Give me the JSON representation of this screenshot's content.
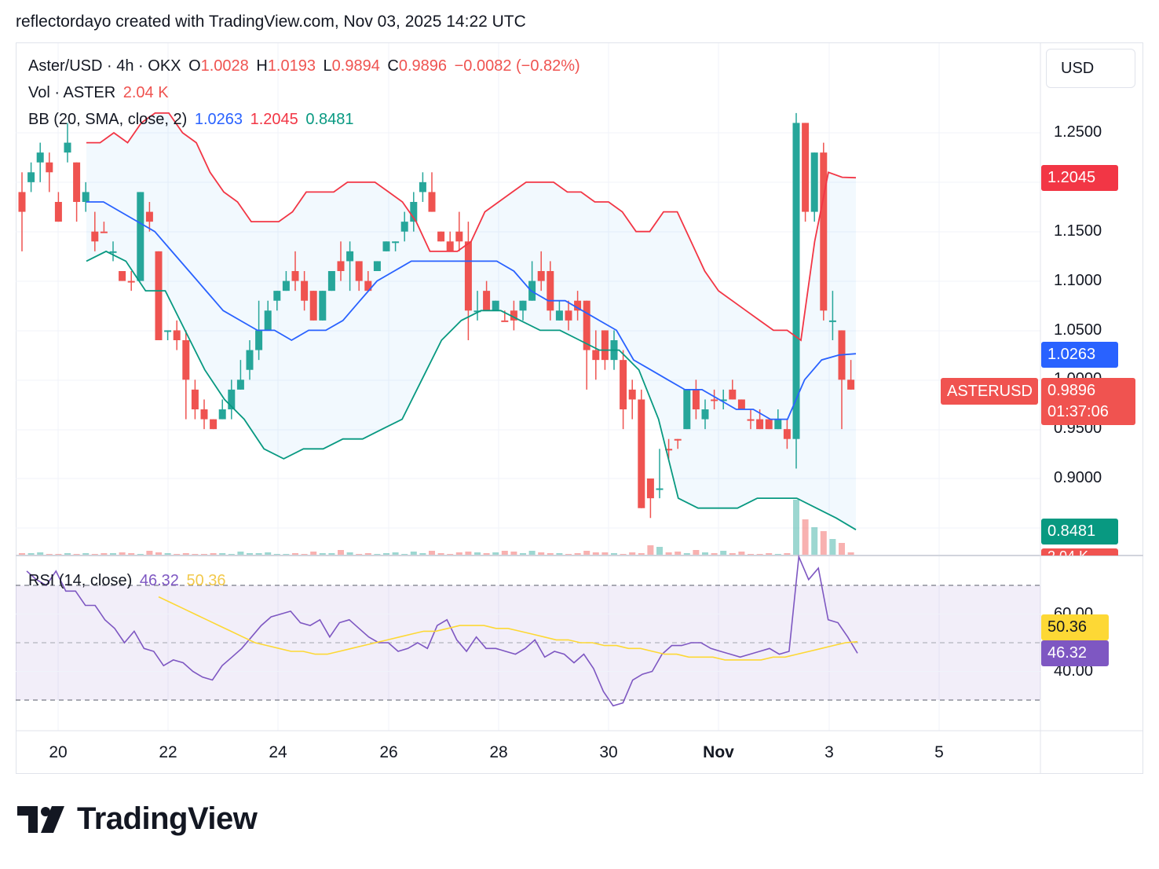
{
  "header": {
    "text": "reflectordayo created with TradingView.com, Nov 03, 2025 14:22 UTC"
  },
  "legend": {
    "symbol": "Aster/USD · 4h · OKX",
    "o_label": "O",
    "o": "1.0028",
    "h_label": "H",
    "h": "1.0193",
    "l_label": "L",
    "l": "0.9894",
    "c_label": "C",
    "c": "0.9896",
    "change": "−0.0082 (−0.82%)",
    "vol_title": "Vol · ASTER",
    "vol_value": "2.04 K",
    "bb_title": "BB (20, SMA, close, 2)",
    "bb_basis": "1.0263",
    "bb_upper": "1.2045",
    "bb_lower": "0.8481",
    "rsi_title": "RSI (14, close)",
    "rsi_value": "46.32",
    "rsi_ma": "50.36"
  },
  "currency_button": "USD",
  "price_axis": [
    "1.2500",
    "1.1500",
    "1.1000",
    "1.0500",
    "1.0000",
    "0.9500",
    "0.9000"
  ],
  "price_tags": {
    "upper": "1.2045",
    "basis": "1.0263",
    "lower": "0.8481",
    "last_symbol": "ASTERUSD",
    "last": "0.9896",
    "countdown": "01:37:06",
    "vol": "2.04 K"
  },
  "rsi_axis": [
    "60.00",
    "40.00"
  ],
  "rsi_tags": {
    "ma": "50.36",
    "rsi": "46.32"
  },
  "x_axis": [
    "20",
    "22",
    "24",
    "26",
    "28",
    "30",
    "Nov",
    "3",
    "5"
  ],
  "brand": "TradingView",
  "colors": {
    "up": "#26a69a",
    "down": "#ef5350",
    "basis": "#2962ff",
    "upper": "#f23645",
    "lower": "#089981",
    "band_fill": "#2196f3",
    "rsi": "#7e57c2",
    "rsi_ma": "#fdd835",
    "last_tag": "#f05350"
  },
  "chart_data": {
    "type": "candlestick",
    "interval": "4h",
    "x_range_days": [
      19.55,
      6.85
    ],
    "y_range": [
      0.865,
      1.285
    ],
    "rsi_range": [
      20,
      85
    ],
    "rsi_levels": [
      70,
      50,
      30
    ],
    "candles": [
      [
        1.17,
        1.21,
        1.19,
        1.13,
        0
      ],
      [
        1.2,
        1.22,
        1.21,
        1.19,
        1
      ],
      [
        1.23,
        1.24,
        1.22,
        1.2,
        1
      ],
      [
        1.22,
        1.23,
        1.21,
        1.19,
        0
      ],
      [
        1.18,
        1.19,
        1.16,
        1.16,
        0
      ],
      [
        1.23,
        1.26,
        1.24,
        1.22,
        1
      ],
      [
        1.22,
        1.21,
        1.18,
        1.16,
        0
      ],
      [
        1.19,
        1.2,
        1.18,
        1.17,
        1
      ],
      [
        1.15,
        1.17,
        1.14,
        1.13,
        0
      ],
      [
        1.15,
        1.16,
        1.15,
        1.15,
        0
      ],
      [
        1.13,
        1.14,
        1.13,
        1.12,
        1
      ],
      [
        1.11,
        1.11,
        1.1,
        1.1,
        0
      ],
      [
        1.1,
        1.11,
        1.1,
        1.09,
        0
      ],
      [
        1.1,
        1.14,
        1.19,
        1.1,
        1
      ],
      [
        1.17,
        1.18,
        1.16,
        1.15,
        0
      ],
      [
        1.13,
        1.13,
        1.04,
        1.04,
        0
      ],
      [
        1.05,
        1.05,
        1.05,
        1.04,
        1
      ],
      [
        1.05,
        1.06,
        1.04,
        1.03,
        0
      ],
      [
        1.04,
        1.05,
        1.0,
        0.96,
        0
      ],
      [
        0.99,
        1.0,
        0.97,
        0.96,
        0
      ],
      [
        0.97,
        0.98,
        0.96,
        0.95,
        0
      ],
      [
        0.95,
        0.96,
        0.96,
        0.95,
        0
      ],
      [
        0.97,
        0.98,
        0.96,
        0.96,
        1
      ],
      [
        0.99,
        1.0,
        0.97,
        0.96,
        1
      ],
      [
        1.0,
        1.02,
        0.99,
        0.99,
        1
      ],
      [
        1.03,
        1.04,
        1.01,
        1.0,
        1
      ],
      [
        1.05,
        1.08,
        1.03,
        1.02,
        1
      ],
      [
        1.07,
        1.08,
        1.05,
        1.05,
        1
      ],
      [
        1.09,
        1.09,
        1.08,
        1.07,
        1
      ],
      [
        1.1,
        1.11,
        1.09,
        1.09,
        1
      ],
      [
        1.11,
        1.13,
        1.1,
        1.09,
        0
      ],
      [
        1.1,
        1.11,
        1.08,
        1.07,
        0
      ],
      [
        1.09,
        1.08,
        1.06,
        1.06,
        0
      ],
      [
        1.09,
        1.09,
        1.06,
        1.06,
        1
      ],
      [
        1.11,
        1.11,
        1.09,
        1.09,
        1
      ],
      [
        1.12,
        1.14,
        1.11,
        1.1,
        0
      ],
      [
        1.13,
        1.14,
        1.12,
        1.09,
        1
      ],
      [
        1.12,
        1.12,
        1.1,
        1.09,
        0
      ],
      [
        1.1,
        1.11,
        1.09,
        1.09,
        0
      ],
      [
        1.12,
        1.12,
        1.11,
        1.11,
        1
      ],
      [
        1.14,
        1.14,
        1.13,
        1.13,
        1
      ],
      [
        1.14,
        1.14,
        1.14,
        1.13,
        1
      ],
      [
        1.16,
        1.17,
        1.15,
        1.14,
        1
      ],
      [
        1.18,
        1.19,
        1.16,
        1.15,
        1
      ],
      [
        1.2,
        1.21,
        1.19,
        1.18,
        1
      ],
      [
        1.19,
        1.21,
        1.17,
        1.17,
        0
      ],
      [
        1.15,
        1.15,
        1.14,
        1.14,
        0
      ],
      [
        1.14,
        1.15,
        1.13,
        1.13,
        0
      ],
      [
        1.15,
        1.17,
        1.14,
        1.13,
        0
      ],
      [
        1.14,
        1.16,
        1.07,
        1.04,
        0
      ],
      [
        1.07,
        1.09,
        1.07,
        1.06,
        1
      ],
      [
        1.09,
        1.1,
        1.07,
        1.07,
        0
      ],
      [
        1.08,
        1.08,
        1.07,
        1.07,
        1
      ],
      [
        1.06,
        1.07,
        1.06,
        1.06,
        0
      ],
      [
        1.07,
        1.08,
        1.06,
        1.05,
        0
      ],
      [
        1.07,
        1.07,
        1.08,
        1.06,
        1
      ],
      [
        1.1,
        1.12,
        1.08,
        1.08,
        1
      ],
      [
        1.11,
        1.13,
        1.1,
        1.09,
        0
      ],
      [
        1.11,
        1.12,
        1.07,
        1.06,
        0
      ],
      [
        1.06,
        1.08,
        1.07,
        1.06,
        1
      ],
      [
        1.07,
        1.08,
        1.06,
        1.05,
        0
      ],
      [
        1.08,
        1.09,
        1.07,
        1.06,
        0
      ],
      [
        1.08,
        1.08,
        1.03,
        0.99,
        0
      ],
      [
        1.03,
        1.05,
        1.02,
        1.0,
        0
      ],
      [
        1.05,
        1.05,
        1.02,
        1.01,
        0
      ],
      [
        1.04,
        1.05,
        1.02,
        1.01,
        1
      ],
      [
        1.02,
        1.03,
        0.97,
        0.95,
        0
      ],
      [
        0.99,
        1.0,
        0.98,
        0.96,
        0
      ],
      [
        0.98,
        0.99,
        0.87,
        0.87,
        0
      ],
      [
        0.9,
        0.9,
        0.88,
        0.86,
        0
      ],
      [
        0.89,
        0.93,
        0.89,
        0.88,
        1
      ],
      [
        0.93,
        0.94,
        0.93,
        0.92,
        0
      ],
      [
        0.94,
        0.94,
        0.94,
        0.93,
        0
      ],
      [
        0.95,
        0.97,
        0.99,
        0.95,
        1
      ],
      [
        0.99,
        1.0,
        0.97,
        0.96,
        0
      ],
      [
        0.97,
        0.98,
        0.96,
        0.95,
        1
      ],
      [
        0.98,
        0.99,
        0.98,
        0.97,
        0
      ],
      [
        0.98,
        0.99,
        0.98,
        0.97,
        1
      ],
      [
        0.99,
        1.0,
        0.98,
        0.98,
        0
      ],
      [
        0.98,
        0.98,
        0.97,
        0.97,
        0
      ],
      [
        0.96,
        0.97,
        0.96,
        0.95,
        0
      ],
      [
        0.96,
        0.97,
        0.95,
        0.95,
        0
      ],
      [
        0.96,
        0.96,
        0.95,
        0.95,
        0
      ],
      [
        0.95,
        0.97,
        0.96,
        0.95,
        1
      ],
      [
        0.95,
        0.96,
        0.94,
        0.93,
        0
      ],
      [
        0.94,
        1.27,
        1.26,
        0.91,
        1
      ],
      [
        1.26,
        1.25,
        1.17,
        1.16,
        0
      ],
      [
        1.17,
        1.23,
        1.23,
        1.16,
        1
      ],
      [
        1.23,
        1.24,
        1.07,
        1.06,
        0
      ],
      [
        1.06,
        1.09,
        1.06,
        1.04,
        1
      ],
      [
        1.05,
        1.05,
        1.0,
        0.95,
        0
      ],
      [
        1.0,
        1.02,
        0.99,
        0.99,
        0
      ]
    ],
    "bb_upper": [
      1.24,
      1.24,
      1.25,
      1.24,
      1.26,
      1.27,
      1.27,
      1.25,
      1.24,
      1.21,
      1.19,
      1.18,
      1.16,
      1.16,
      1.16,
      1.17,
      1.19,
      1.19,
      1.19,
      1.2,
      1.2,
      1.2,
      1.19,
      1.18,
      1.16,
      1.13,
      1.13,
      1.13,
      1.14,
      1.17,
      1.18,
      1.19,
      1.2,
      1.2,
      1.2,
      1.19,
      1.19,
      1.18,
      1.18,
      1.17,
      1.15,
      1.15,
      1.17,
      1.17,
      1.14,
      1.11,
      1.09,
      1.08,
      1.07,
      1.06,
      1.05,
      1.05,
      1.04,
      1.14,
      1.21,
      1.205,
      1.2045
    ],
    "bb_basis": [
      1.18,
      1.18,
      1.17,
      1.16,
      1.15,
      1.13,
      1.11,
      1.09,
      1.07,
      1.06,
      1.05,
      1.05,
      1.04,
      1.05,
      1.05,
      1.06,
      1.08,
      1.1,
      1.11,
      1.12,
      1.12,
      1.12,
      1.12,
      1.12,
      1.12,
      1.11,
      1.09,
      1.08,
      1.08,
      1.07,
      1.06,
      1.05,
      1.02,
      1.01,
      1.0,
      0.99,
      0.99,
      0.98,
      0.97,
      0.97,
      0.96,
      0.96,
      1.0,
      1.02,
      1.025,
      1.0263
    ],
    "bb_lower": [
      1.12,
      1.13,
      1.12,
      1.09,
      1.09,
      1.05,
      1.01,
      0.98,
      0.96,
      0.93,
      0.92,
      0.93,
      0.93,
      0.94,
      0.94,
      0.95,
      0.96,
      1.0,
      1.04,
      1.06,
      1.07,
      1.07,
      1.06,
      1.05,
      1.05,
      1.04,
      1.03,
      1.03,
      1.01,
      0.96,
      0.88,
      0.87,
      0.87,
      0.87,
      0.88,
      0.88,
      0.88,
      0.87,
      0.86,
      0.8481
    ],
    "volumes": [
      2,
      2,
      3,
      1,
      1,
      2,
      1,
      2,
      1,
      2,
      2,
      3,
      2,
      1,
      5,
      3,
      2,
      1,
      2,
      1,
      1,
      2,
      2,
      1,
      4,
      2,
      2,
      3,
      1,
      1,
      2,
      1,
      4,
      2,
      2,
      6,
      3,
      1,
      2,
      1,
      2,
      3,
      1,
      4,
      2,
      5,
      2,
      1,
      3,
      4,
      3,
      2,
      3,
      5,
      4,
      2,
      5,
      3,
      2,
      2,
      1,
      2,
      5,
      3,
      3,
      2,
      1,
      3,
      2,
      12,
      10,
      3,
      4,
      2,
      6,
      3,
      2,
      5,
      2,
      4,
      1,
      1,
      2,
      1,
      2,
      70,
      45,
      35,
      30,
      20,
      15,
      3
    ],
    "rsi": [
      75,
      72,
      70,
      75,
      68,
      68,
      63,
      63,
      58,
      55,
      50,
      54,
      48,
      47,
      42,
      44,
      43,
      40,
      38,
      37,
      42,
      45,
      48,
      52,
      56,
      59,
      60,
      61,
      57,
      56,
      58,
      52,
      57,
      58,
      55,
      52,
      50,
      50,
      47,
      48,
      50,
      48,
      56,
      58,
      51,
      47,
      52,
      48,
      48,
      47,
      46,
      48,
      51,
      45,
      47,
      46,
      43,
      46,
      41,
      33,
      28,
      29,
      37,
      39,
      40,
      46,
      49,
      49,
      50,
      50,
      48,
      47,
      46,
      45,
      46,
      47,
      48,
      46,
      47,
      80,
      72,
      76,
      58,
      57,
      52,
      46.32
    ],
    "rsi_ma": [
      66,
      64,
      62,
      60,
      58,
      56,
      54,
      52,
      50,
      49,
      48,
      47,
      47,
      46,
      46,
      47,
      48,
      49,
      50,
      51,
      52,
      53,
      54,
      54,
      55,
      56,
      56,
      56,
      55,
      55,
      54,
      53,
      52,
      51,
      51,
      50,
      50,
      49,
      49,
      48,
      48,
      47,
      46,
      46,
      45,
      45,
      45,
      44,
      44,
      44,
      44,
      45,
      45,
      46,
      47,
      48,
      49,
      50,
      50.36
    ]
  }
}
